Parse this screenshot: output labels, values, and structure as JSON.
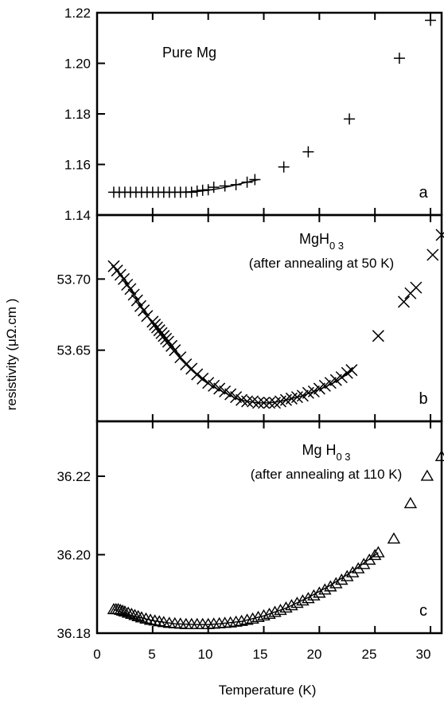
{
  "figure": {
    "xlabel": "Temperature (K)",
    "ylabel": "resistivity  (μΩ.cm )",
    "xticks": [
      "0",
      "5",
      "10",
      "15",
      "20",
      "25",
      "30"
    ]
  },
  "chart_data": [
    {
      "type": "scatter",
      "panel_letter": "a",
      "title": "Pure Mg",
      "xlim": [
        0,
        31
      ],
      "ylim": [
        1.14,
        1.22
      ],
      "yticks": [
        "1.22",
        "1.20",
        "1.18",
        "1.16",
        "1.14"
      ],
      "marker": "plus",
      "series": [
        {
          "x": [
            1.5,
            2.0,
            2.5,
            3.0,
            3.5,
            4.0,
            4.5,
            5.0,
            5.5,
            6.0,
            6.5,
            7.0,
            7.5,
            8.0,
            8.5,
            9.0,
            9.5,
            10.0,
            10.5,
            11.5,
            12.5,
            13.5,
            14.2,
            16.8,
            19.0,
            22.7,
            27.2,
            30.0
          ],
          "y": [
            1.149,
            1.149,
            1.149,
            1.149,
            1.149,
            1.149,
            1.149,
            1.149,
            1.149,
            1.149,
            1.149,
            1.149,
            1.149,
            1.149,
            1.149,
            1.1495,
            1.1498,
            1.15,
            1.151,
            1.1515,
            1.152,
            1.153,
            1.154,
            1.159,
            1.165,
            1.178,
            1.202,
            1.217
          ]
        }
      ],
      "curve": {
        "x": [
          1.5,
          3,
          5,
          7,
          9,
          10,
          11,
          12,
          13,
          14.5
        ],
        "y": [
          1.149,
          1.149,
          1.149,
          1.149,
          1.1493,
          1.1498,
          1.1505,
          1.1514,
          1.1525,
          1.154
        ]
      }
    },
    {
      "type": "scatter",
      "panel_letter": "b",
      "title": "MgH",
      "title_subscript": "0 3",
      "subtitle": "(after annealing at 50 K)",
      "xlim": [
        0,
        31
      ],
      "ylim": [
        53.6,
        53.745
      ],
      "yticks": [
        "53.70",
        "53.65"
      ],
      "marker": "cross",
      "series": [
        {
          "x": [
            1.5,
            1.8,
            2.1,
            2.4,
            2.7,
            3.0,
            3.3,
            3.6,
            3.9,
            4.2,
            4.5,
            5.0,
            5.2,
            5.4,
            5.6,
            5.8,
            6.0,
            6.2,
            6.4,
            6.7,
            7.0,
            7.5,
            8.0,
            8.5,
            9.0,
            9.5,
            10.0,
            10.5,
            11.0,
            11.5,
            12.0,
            12.5,
            13.0,
            13.5,
            14.0,
            14.5,
            15.0,
            15.5,
            16.0,
            16.5,
            17.0,
            17.5,
            18.0,
            18.5,
            19.0,
            19.5,
            20.0,
            20.5,
            21.0,
            21.5,
            22.0,
            22.5,
            22.9,
            25.3,
            27.6,
            28.2,
            28.7,
            30.2,
            31.0
          ],
          "y": [
            53.709,
            53.706,
            53.703,
            53.7,
            53.696,
            53.693,
            53.689,
            53.685,
            53.681,
            53.678,
            53.674,
            53.67,
            53.668,
            53.666,
            53.664,
            53.662,
            53.66,
            53.658,
            53.656,
            53.653,
            53.65,
            53.645,
            53.64,
            53.637,
            53.633,
            53.63,
            53.627,
            53.625,
            53.623,
            53.621,
            53.619,
            53.617,
            53.615,
            53.614,
            53.614,
            53.613,
            53.613,
            53.613,
            53.613,
            53.614,
            53.615,
            53.616,
            53.617,
            53.618,
            53.62,
            53.621,
            53.623,
            53.625,
            53.627,
            53.629,
            53.631,
            53.634,
            53.636,
            53.66,
            53.684,
            53.69,
            53.694,
            53.717,
            53.731
          ]
        }
      ],
      "curve": {
        "x": [
          1.5,
          2.5,
          3.5,
          4.5,
          5.5,
          6.5,
          7.5,
          8.5,
          9.5,
          10.5,
          11.5,
          12.5,
          13.5,
          14.5,
          15.5,
          16.5,
          17.5,
          18.5,
          19.5,
          20.5,
          21.5,
          22.5,
          23.0
        ],
        "y": [
          53.709,
          53.699,
          53.687,
          53.674,
          53.663,
          53.653,
          53.644,
          53.636,
          53.629,
          53.624,
          53.62,
          53.616,
          53.614,
          53.613,
          53.613,
          53.614,
          53.616,
          53.618,
          53.621,
          53.624,
          53.628,
          53.633,
          53.636
        ]
      }
    },
    {
      "type": "scatter",
      "panel_letter": "c",
      "title": "Mg H",
      "title_subscript": "0 3",
      "subtitle": "(after annealing at 110 K)",
      "xlim": [
        0,
        31
      ],
      "ylim": [
        36.18,
        36.234
      ],
      "yticks": [
        "36.22",
        "36.20",
        "36.18"
      ],
      "marker": "triangle",
      "series": [
        {
          "x": [
            1.5,
            1.7,
            1.9,
            2.1,
            2.3,
            2.5,
            2.8,
            3.1,
            3.4,
            3.7,
            4.0,
            4.4,
            4.8,
            5.2,
            5.6,
            6.0,
            6.5,
            7.0,
            7.5,
            8.0,
            8.5,
            9.0,
            9.5,
            10.0,
            10.5,
            11.0,
            11.5,
            12.0,
            12.5,
            13.0,
            13.5,
            14.0,
            14.5,
            15.0,
            15.5,
            16.0,
            16.5,
            17.0,
            17.5,
            18.0,
            18.5,
            19.0,
            19.5,
            20.0,
            20.5,
            21.0,
            21.5,
            22.0,
            22.5,
            23.0,
            23.5,
            24.0,
            24.5,
            25.0,
            25.3,
            26.7,
            28.2,
            29.7,
            31.0
          ],
          "y": [
            36.186,
            36.186,
            36.186,
            36.1858,
            36.1856,
            36.1854,
            36.1851,
            36.1848,
            36.1845,
            36.1842,
            36.1839,
            36.1836,
            36.1833,
            36.1831,
            36.1829,
            36.1827,
            36.1825,
            36.1824,
            36.1823,
            36.1822,
            36.1822,
            36.1822,
            36.1822,
            36.1822,
            36.1823,
            36.1824,
            36.1825,
            36.1826,
            36.1828,
            36.183,
            36.1833,
            36.1836,
            36.184,
            36.1844,
            36.1848,
            36.1853,
            36.1858,
            36.1864,
            36.187,
            36.1876,
            36.1882,
            36.1888,
            36.1895,
            36.1902,
            36.191,
            36.1918,
            36.1926,
            36.1935,
            36.1944,
            36.1954,
            36.1964,
            36.1975,
            36.1986,
            36.1998,
            36.2005,
            36.204,
            36.213,
            36.22,
            36.225
          ]
        }
      ],
      "curve": {
        "x": [
          1.5,
          3,
          5,
          7,
          9,
          10,
          11,
          13,
          15,
          17,
          19,
          21,
          23,
          25.3
        ],
        "y": [
          36.186,
          36.1846,
          36.1832,
          36.1824,
          36.1822,
          36.1822,
          36.1824,
          36.183,
          36.1844,
          36.1864,
          36.1891,
          36.1922,
          36.1958,
          36.2005
        ]
      }
    }
  ]
}
